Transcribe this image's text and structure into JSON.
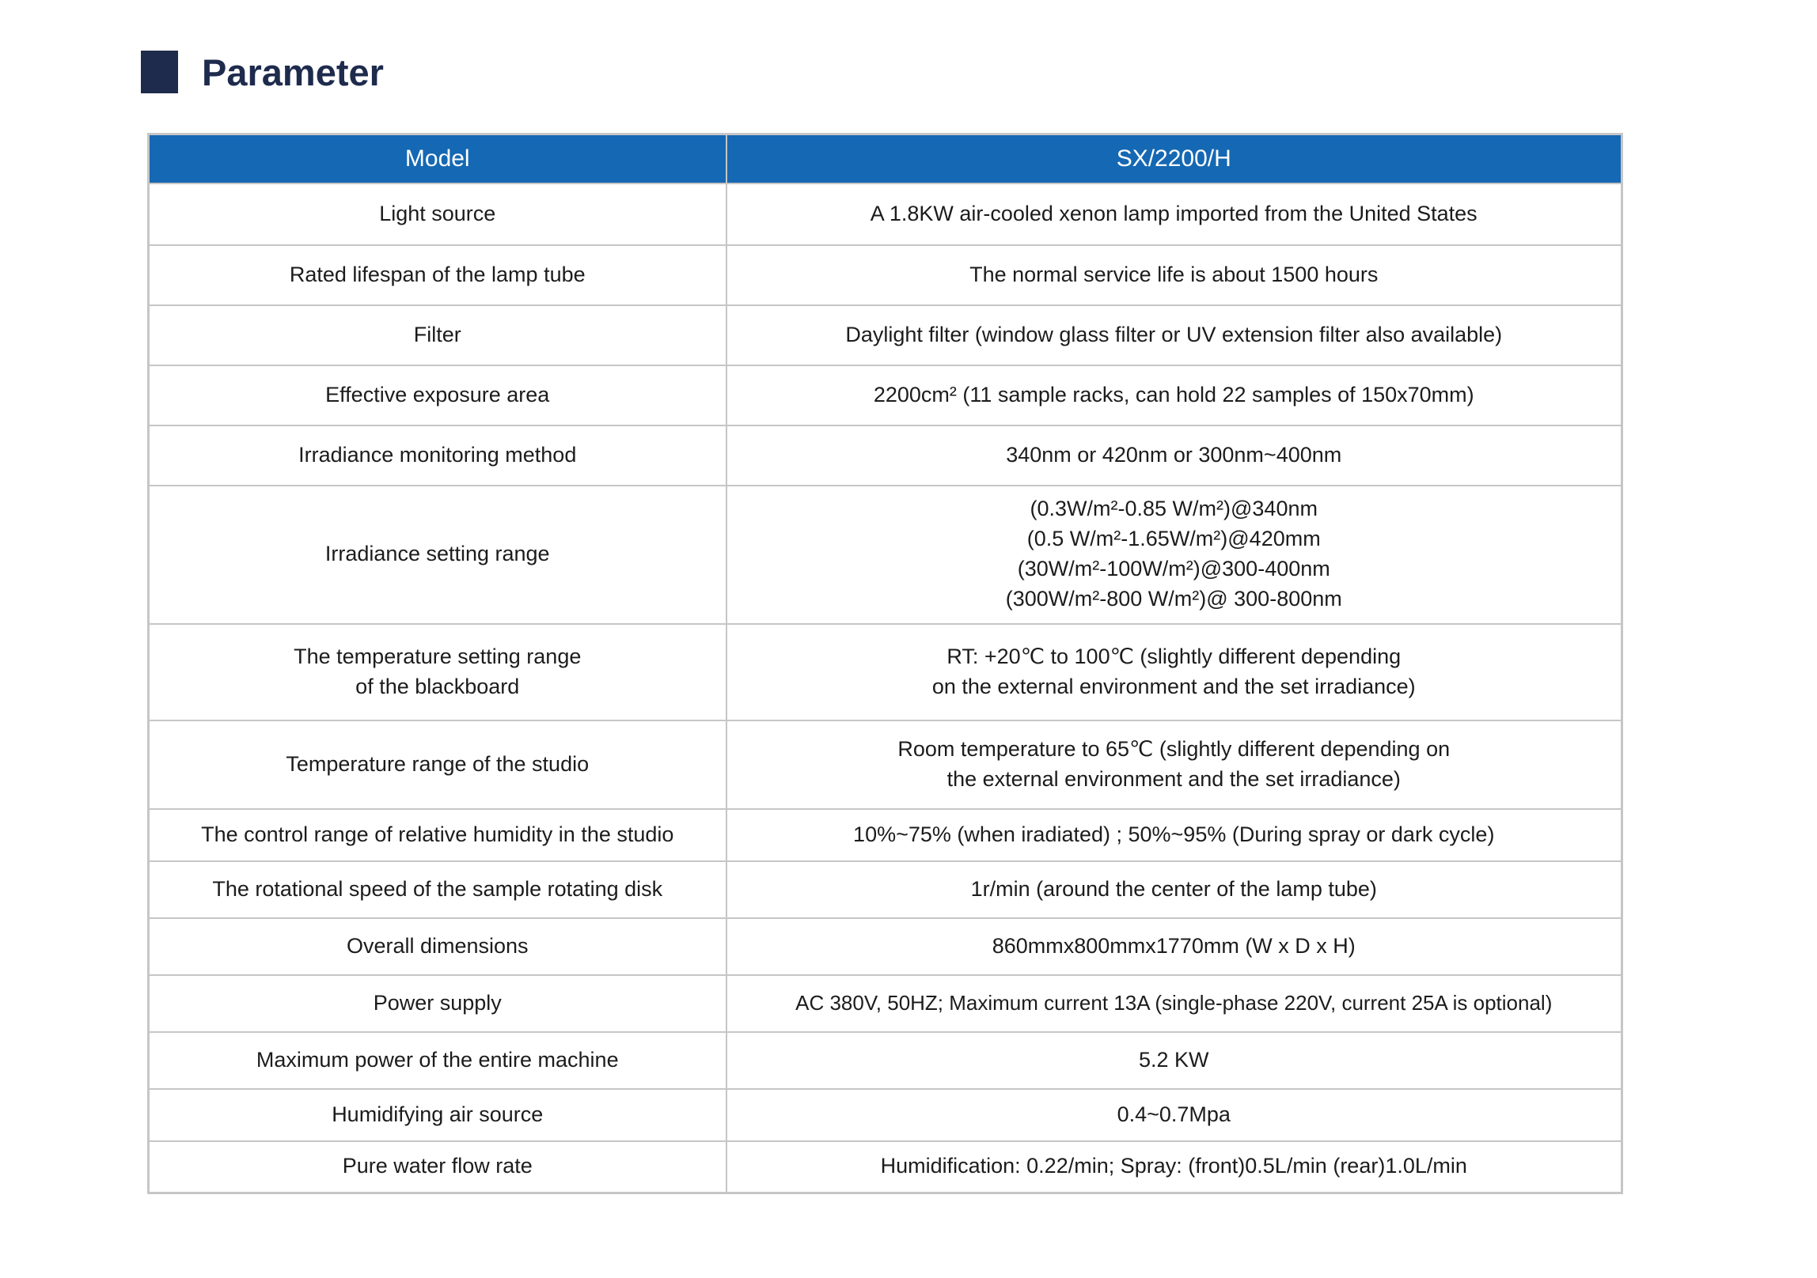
{
  "page": {
    "title": "Parameter"
  },
  "colors": {
    "header_bg": "#1568b3",
    "title": "#1e2b4d",
    "border": "#c6c6c6",
    "text": "#1c1c1c"
  },
  "table": {
    "header": {
      "param_col": "Model",
      "value_col": "SX/2200/H"
    },
    "rows": [
      {
        "param": "Light source",
        "value": "A 1.8KW air-cooled xenon lamp imported from the United States"
      },
      {
        "param": "Rated lifespan of the lamp tube",
        "value": "The normal service life is about 1500 hours"
      },
      {
        "param": "Filter",
        "value": "Daylight filter (window glass filter or UV extension filter also available)"
      },
      {
        "param": "Effective exposure area",
        "value": "2200cm² (11 sample racks, can hold 22 samples of 150x70mm)"
      },
      {
        "param": "Irradiance monitoring method",
        "value": "340nm or 420nm or 300nm~400nm"
      },
      {
        "param": "Irradiance setting range",
        "value": "(0.3W/m²-0.85 W/m²)@340nm\n(0.5 W/m²-1.65W/m²)@420mm\n(30W/m²-100W/m²)@300-400nm\n(300W/m²-800 W/m²)@ 300-800nm"
      },
      {
        "param": "The temperature setting range\nof the blackboard",
        "value": "RT: +20℃ to 100℃ (slightly different depending\non the external environment and the set irradiance)"
      },
      {
        "param": "Temperature range of the studio",
        "value": "Room temperature to 65℃ (slightly different depending on\nthe external environment and the set irradiance)"
      },
      {
        "param": "The control range of relative humidity in the studio",
        "value": "10%~75% (when iradiated) ; 50%~95% (During spray or dark cycle)"
      },
      {
        "param": "The rotational speed of the sample rotating disk",
        "value": "1r/min (around the center of the lamp tube)"
      },
      {
        "param": "Overall dimensions",
        "value": "860mmx800mmx1770mm (W x D x H)"
      },
      {
        "param": "Power supply",
        "value": "AC 380V, 50HZ; Maximum current 13A (single-phase 220V, current 25A is optional)"
      },
      {
        "param": "Maximum power of the entire machine",
        "value": "5.2 KW"
      },
      {
        "param": "Humidifying air source",
        "value": "0.4~0.7Mpa"
      },
      {
        "param": "Pure water flow rate",
        "value": "Humidification: 0.22/min; Spray: (front)0.5L/min (rear)1.0L/min"
      }
    ]
  }
}
